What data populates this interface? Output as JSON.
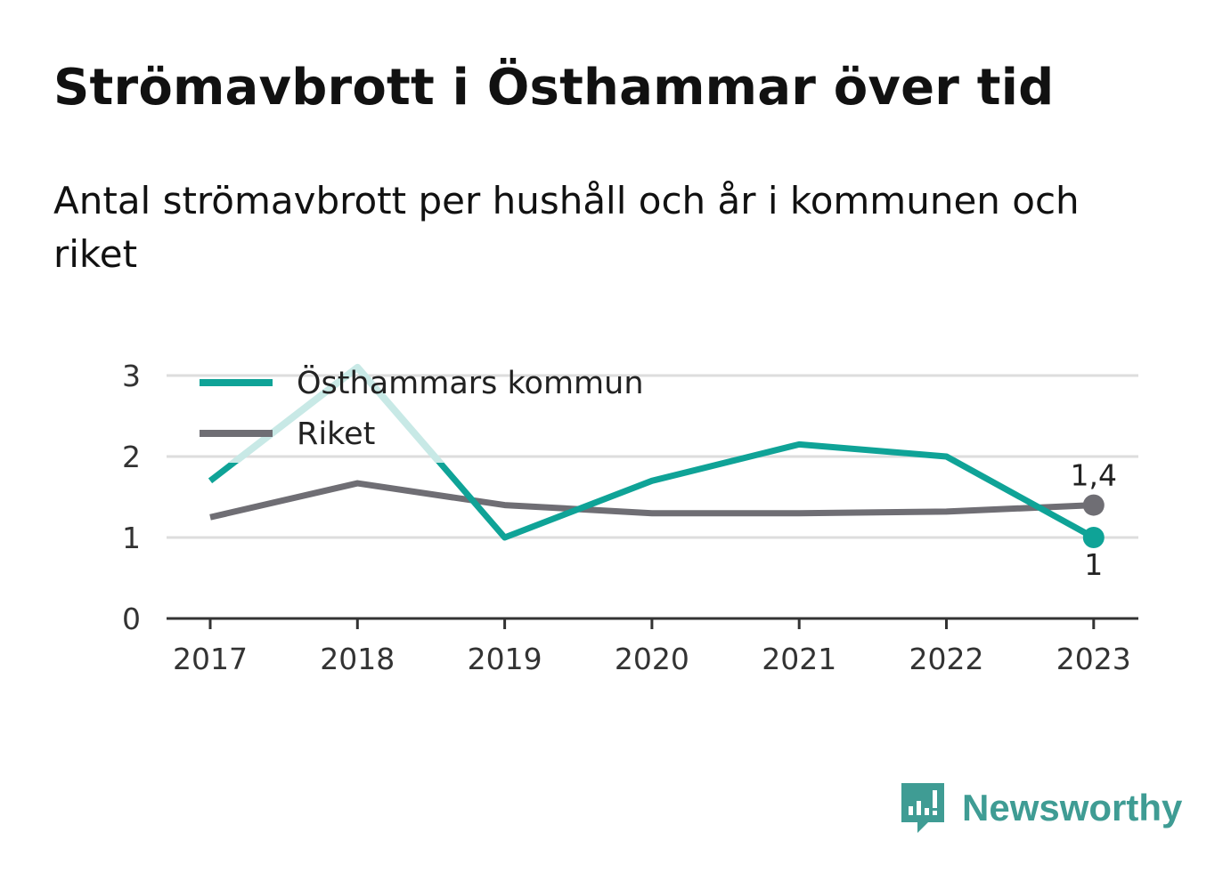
{
  "title": "Strömavbrott i Östhammar över tid",
  "subtitle": "Antal strömavbrott per hushåll och år i kommunen och riket",
  "brand": {
    "name": "Newsworthy"
  },
  "colors": {
    "kommun": "#0fa397",
    "kommun_faded": "#c8e9e6",
    "riket": "#6f6e74",
    "grid": "#dddddd",
    "axis": "#333333",
    "brand": "#3f9c94"
  },
  "chart_data": {
    "type": "line",
    "x": [
      "2017",
      "2018",
      "2019",
      "2020",
      "2021",
      "2022",
      "2023"
    ],
    "ylim": [
      0,
      3
    ],
    "yticks": [
      "0",
      "1",
      "2",
      "3"
    ],
    "grid": true,
    "legend_position": "top-left",
    "series": [
      {
        "name": "Östhammars kommun",
        "values": [
          1.7,
          3.1,
          1.0,
          1.7,
          2.15,
          2.0,
          1.0
        ],
        "end_label": "1"
      },
      {
        "name": "Riket",
        "values": [
          1.25,
          1.67,
          1.4,
          1.3,
          1.3,
          1.32,
          1.4
        ],
        "end_label": "1,4"
      }
    ]
  }
}
